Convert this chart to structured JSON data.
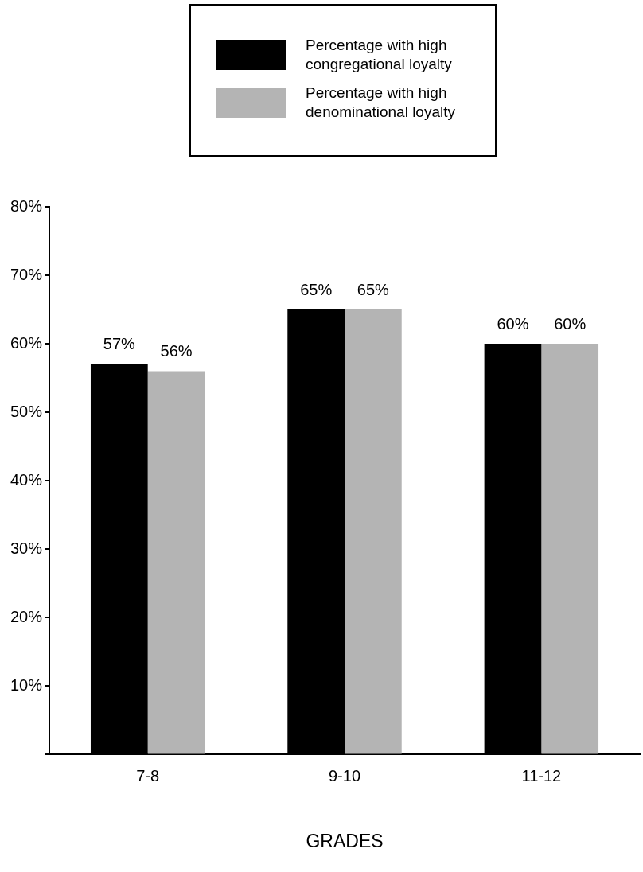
{
  "chart_data": {
    "type": "bar",
    "xlabel": "GRADES",
    "categories": [
      "7-8",
      "9-10",
      "11-12"
    ],
    "series": [
      {
        "name": "Percentage with high congregational loyalty",
        "color": "#000000",
        "values": [
          57,
          65,
          60
        ],
        "value_labels": [
          "57%",
          "65%",
          "60%"
        ]
      },
      {
        "name": "Percentage with high denominational loyalty",
        "color": "#b4b4b4",
        "values": [
          56,
          65,
          60
        ],
        "value_labels": [
          "56%",
          "65%",
          "60%"
        ]
      }
    ],
    "ylim": [
      0,
      80
    ],
    "yticks": [
      {
        "value": 0,
        "label": null
      },
      {
        "value": 10,
        "label": "10%"
      },
      {
        "value": 20,
        "label": "20%"
      },
      {
        "value": 30,
        "label": "30%"
      },
      {
        "value": 40,
        "label": "40%"
      },
      {
        "value": 50,
        "label": "50%"
      },
      {
        "value": 60,
        "label": "60%"
      },
      {
        "value": 70,
        "label": "70%"
      },
      {
        "value": 80,
        "label": "80%"
      }
    ],
    "legend": "top",
    "grid": false
  }
}
